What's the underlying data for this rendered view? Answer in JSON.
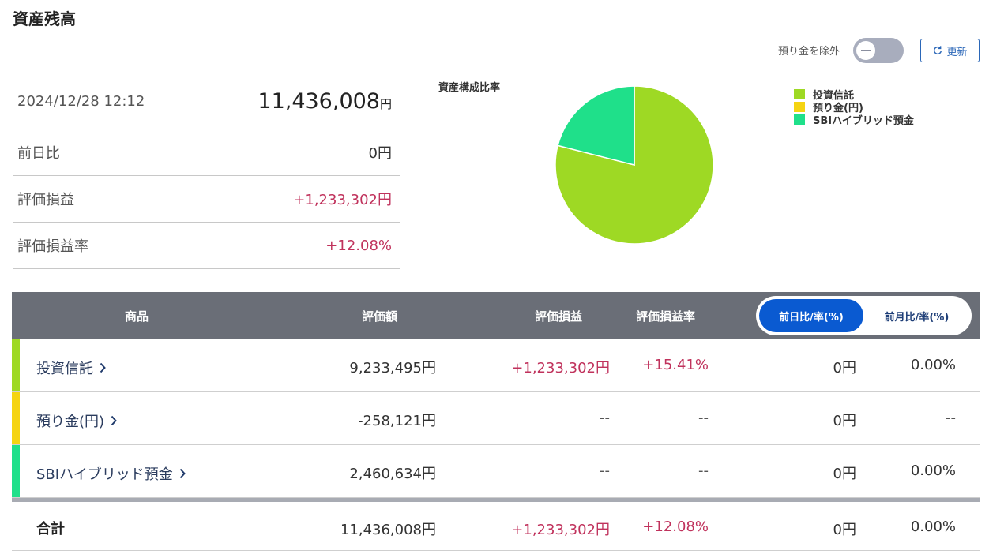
{
  "page_title": "資産残高",
  "controls": {
    "exclude_label": "預り金を除外",
    "refresh_label": "更新"
  },
  "summary": {
    "datetime": "2024/12/28 12:12",
    "total_value": "11,436,008",
    "total_unit": "円",
    "rows": [
      {
        "label": "前日比",
        "value": "0円"
      },
      {
        "label": "評価損益",
        "value": "+1,233,302円"
      },
      {
        "label": "評価損益率",
        "value": "+12.08%"
      }
    ]
  },
  "chart": {
    "title": "資産構成比率",
    "legend": [
      {
        "label": "投資信託",
        "color": "#9ed924"
      },
      {
        "label": "預り金(円)",
        "color": "#f5d412"
      },
      {
        "label": "SBIハイブリッド預金",
        "color": "#1fe08a"
      }
    ]
  },
  "chart_data": {
    "type": "pie",
    "title": "資産構成比率",
    "categories": [
      "投資信託",
      "預り金(円)",
      "SBIハイブリッド預金"
    ],
    "values": [
      9233495,
      0,
      2460634
    ],
    "colors": [
      "#9ed924",
      "#f5d412",
      "#1fe08a"
    ],
    "legend_position": "right"
  },
  "table": {
    "headers": {
      "product": "商品",
      "valuation": "評価額",
      "pl": "評価損益",
      "pl_rate": "評価損益率"
    },
    "toggle": {
      "active": "前日比/率(%)",
      "inactive": "前月比/率(%)"
    },
    "rows": [
      {
        "name": "投資信託",
        "color": "#9ed924",
        "valuation": "9,233,495円",
        "pl": "+1,233,302円",
        "pl_rate": "+15.41%",
        "day": "0円",
        "day_rate": "0.00%"
      },
      {
        "name": "預り金(円)",
        "color": "#f5d412",
        "valuation": "-258,121円",
        "pl": "--",
        "pl_rate": "--",
        "day": "0円",
        "day_rate": "--"
      },
      {
        "name": "SBIハイブリッド預金",
        "color": "#1fe08a",
        "valuation": "2,460,634円",
        "pl": "--",
        "pl_rate": "--",
        "day": "0円",
        "day_rate": "0.00%"
      }
    ],
    "total": {
      "name": "合計",
      "valuation": "11,436,008円",
      "pl": "+1,233,302円",
      "pl_rate": "+12.08%",
      "day": "0円",
      "day_rate": "0.00%"
    }
  }
}
